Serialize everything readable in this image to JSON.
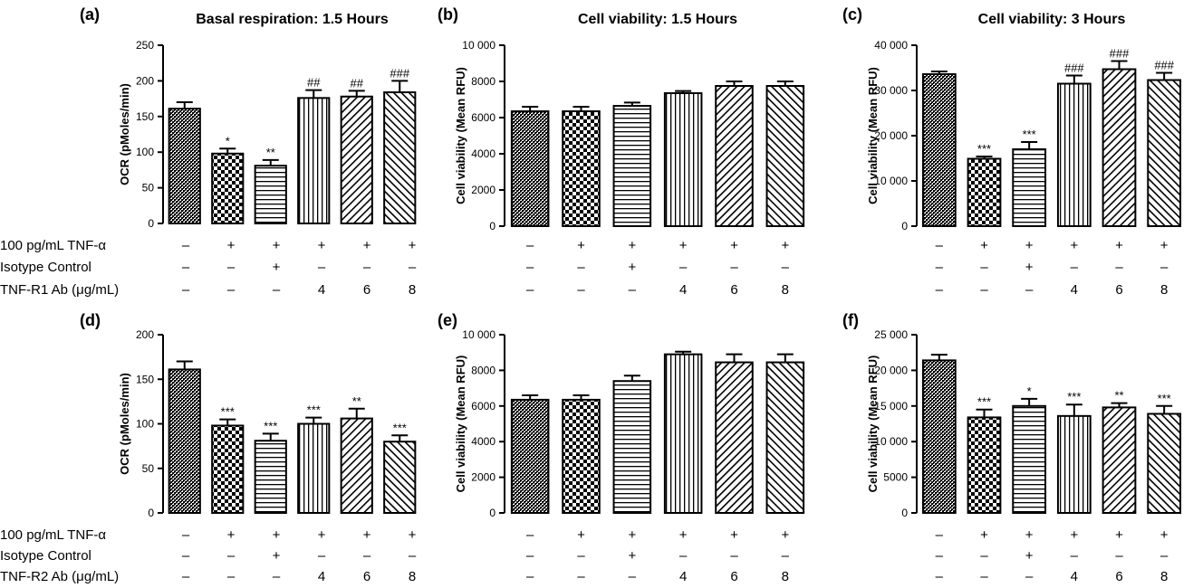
{
  "figure": {
    "conditions": [
      "100 pg/mL TNF-α",
      "Isotype Control"
    ],
    "condition_marks": {
      "tnf": [
        "–",
        "+",
        "+",
        "+",
        "+",
        "+"
      ],
      "isotype": [
        "–",
        "–",
        "+",
        "–",
        "–",
        "–"
      ],
      "ab": [
        "–",
        "–",
        "–",
        "4",
        "6",
        "8"
      ]
    },
    "ab_label_top": "TNF-R1 Ab (μg/mL)",
    "ab_label_bottom": "TNF-R2 Ab (μg/mL)"
  },
  "colors": {
    "bar_stroke": "#000000",
    "background": "#ffffff"
  },
  "chart_data": [
    {
      "id": "a",
      "panel_label": "(a)",
      "type": "bar",
      "title": "Basal respiration: 1.5 Hours",
      "ylabel": "OCR (pMoles/min)",
      "ylim": [
        0,
        250
      ],
      "yticks": [
        0,
        50,
        100,
        150,
        200,
        250
      ],
      "ytick_labels": [
        "0",
        "50",
        "100",
        "150",
        "200",
        "250"
      ],
      "values": [
        161,
        98,
        81,
        176,
        178,
        184
      ],
      "errors": [
        9,
        7,
        8,
        11,
        8,
        16
      ],
      "significance": [
        "",
        "*",
        "**",
        "##",
        "##",
        "###"
      ]
    },
    {
      "id": "b",
      "panel_label": "(b)",
      "type": "bar",
      "title": "Cell viability: 1.5 Hours",
      "ylabel": "Cell viability (Mean RFU)",
      "ylim": [
        0,
        10000
      ],
      "yticks": [
        0,
        2000,
        4000,
        6000,
        8000,
        10000
      ],
      "ytick_labels": [
        "0",
        "2000",
        "4000",
        "6000",
        "8000",
        "10 000"
      ],
      "values": [
        6350,
        6350,
        6650,
        7350,
        7750,
        7750
      ],
      "errors": [
        250,
        250,
        180,
        120,
        250,
        250
      ],
      "significance": [
        "",
        "",
        "",
        "",
        "",
        ""
      ]
    },
    {
      "id": "c",
      "panel_label": "(c)",
      "type": "bar",
      "title": "Cell viability:  3 Hours",
      "ylabel": "Cell viability (Mean RFU)",
      "ylim": [
        0,
        40000
      ],
      "yticks": [
        0,
        10000,
        20000,
        30000,
        40000
      ],
      "ytick_labels": [
        "0",
        "10 000",
        "20 000",
        "30 000",
        "40 000"
      ],
      "values": [
        33600,
        14900,
        17000,
        31500,
        34700,
        32300
      ],
      "errors": [
        600,
        500,
        1600,
        1800,
        1800,
        1600
      ],
      "significance": [
        "",
        "***",
        "***",
        "###",
        "###",
        "###"
      ]
    },
    {
      "id": "d",
      "panel_label": "(d)",
      "type": "bar",
      "title": "",
      "ylabel": "OCR (pMoles/min)",
      "ylim": [
        0,
        200
      ],
      "yticks": [
        0,
        50,
        100,
        150,
        200
      ],
      "ytick_labels": [
        "0",
        "50",
        "100",
        "150",
        "200"
      ],
      "values": [
        161,
        98,
        81,
        100,
        106,
        80
      ],
      "errors": [
        9,
        7,
        8,
        7,
        11,
        7
      ],
      "significance": [
        "",
        "***",
        "***",
        "***",
        "**",
        "***"
      ]
    },
    {
      "id": "e",
      "panel_label": "(e)",
      "type": "bar",
      "title": "",
      "ylabel": "Cell viability (Mean RFU)",
      "ylim": [
        0,
        10000
      ],
      "yticks": [
        0,
        2000,
        4000,
        6000,
        8000,
        10000
      ],
      "ytick_labels": [
        "0",
        "2000",
        "4000",
        "6000",
        "8000",
        "10 000"
      ],
      "values": [
        6350,
        6350,
        7400,
        8900,
        8450,
        8450
      ],
      "errors": [
        250,
        250,
        300,
        150,
        450,
        450
      ],
      "significance": [
        "",
        "",
        "",
        "",
        "",
        ""
      ]
    },
    {
      "id": "f",
      "panel_label": "(f)",
      "type": "bar",
      "title": "",
      "ylabel": "Cell viability (Mean RFU)",
      "ylim": [
        0,
        25000
      ],
      "yticks": [
        0,
        5000,
        10000,
        15000,
        20000,
        25000
      ],
      "ytick_labels": [
        "0",
        "5000",
        "10 000",
        "15 000",
        "20 000",
        "25 000"
      ],
      "values": [
        21400,
        13400,
        15000,
        13600,
        14800,
        13900
      ],
      "errors": [
        800,
        1100,
        1000,
        1600,
        600,
        1100
      ],
      "significance": [
        "",
        "***",
        "*",
        "***",
        "**",
        "***"
      ]
    }
  ]
}
